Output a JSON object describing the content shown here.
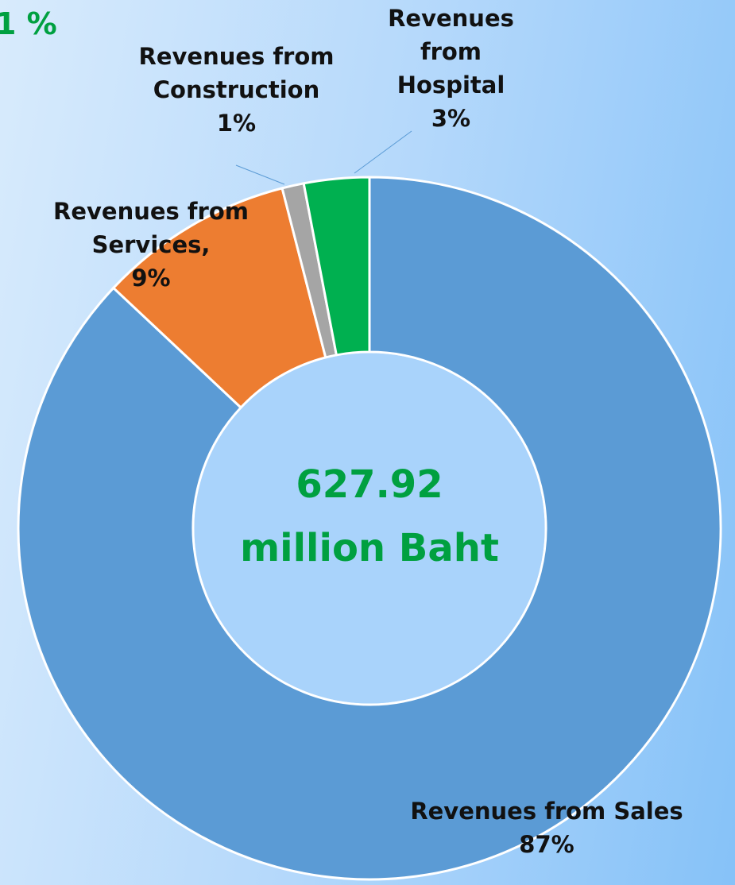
{
  "chart_data": {
    "type": "donut",
    "annotation": "1 %",
    "center_lines": [
      "627.92",
      "million Baht"
    ],
    "categories": [
      "Revenues from Sales",
      "Revenues from Services,",
      "Revenues from Construction",
      "Revenues from Hospital"
    ],
    "values": [
      87,
      9,
      1,
      3
    ],
    "value_labels": [
      "87%",
      "9%",
      "1%",
      "3%"
    ],
    "colors": [
      "#5b9bd5",
      "#ed7d31",
      "#a5a5a5",
      "#00b050"
    ]
  }
}
